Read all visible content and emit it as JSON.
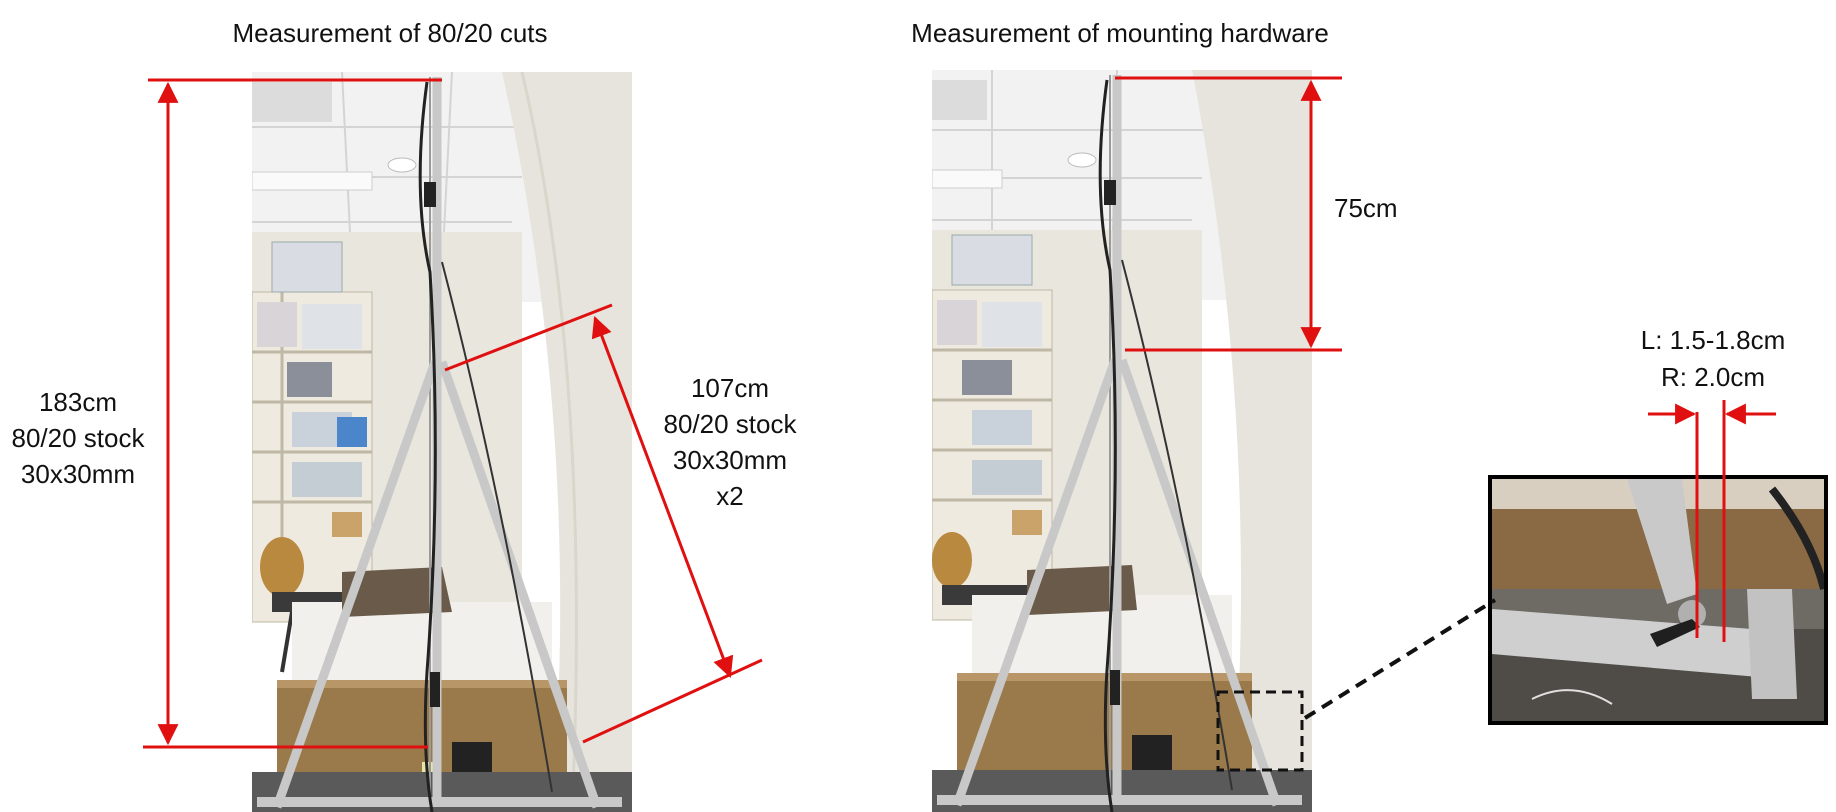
{
  "left_panel": {
    "title": "Measurement of 80/20 cuts",
    "vertical_label": [
      "183cm",
      "80/20 stock",
      "30x30mm"
    ],
    "diagonal_label": [
      "107cm",
      "80/20 stock",
      "30x30mm",
      "x2"
    ]
  },
  "right_panel": {
    "title": "Measurement of mounting hardware",
    "top_label": "75cm",
    "inset_label": [
      "L: 1.5-1.8cm",
      "R: 2.0cm"
    ]
  },
  "colors": {
    "measure_line": "#e01010",
    "frame": "#c8c8c8",
    "bed_panel": "#9a7a4a",
    "ceiling": "#f3f3f3",
    "wall": "#ebe9e2",
    "floor": "#5a5a5a"
  }
}
